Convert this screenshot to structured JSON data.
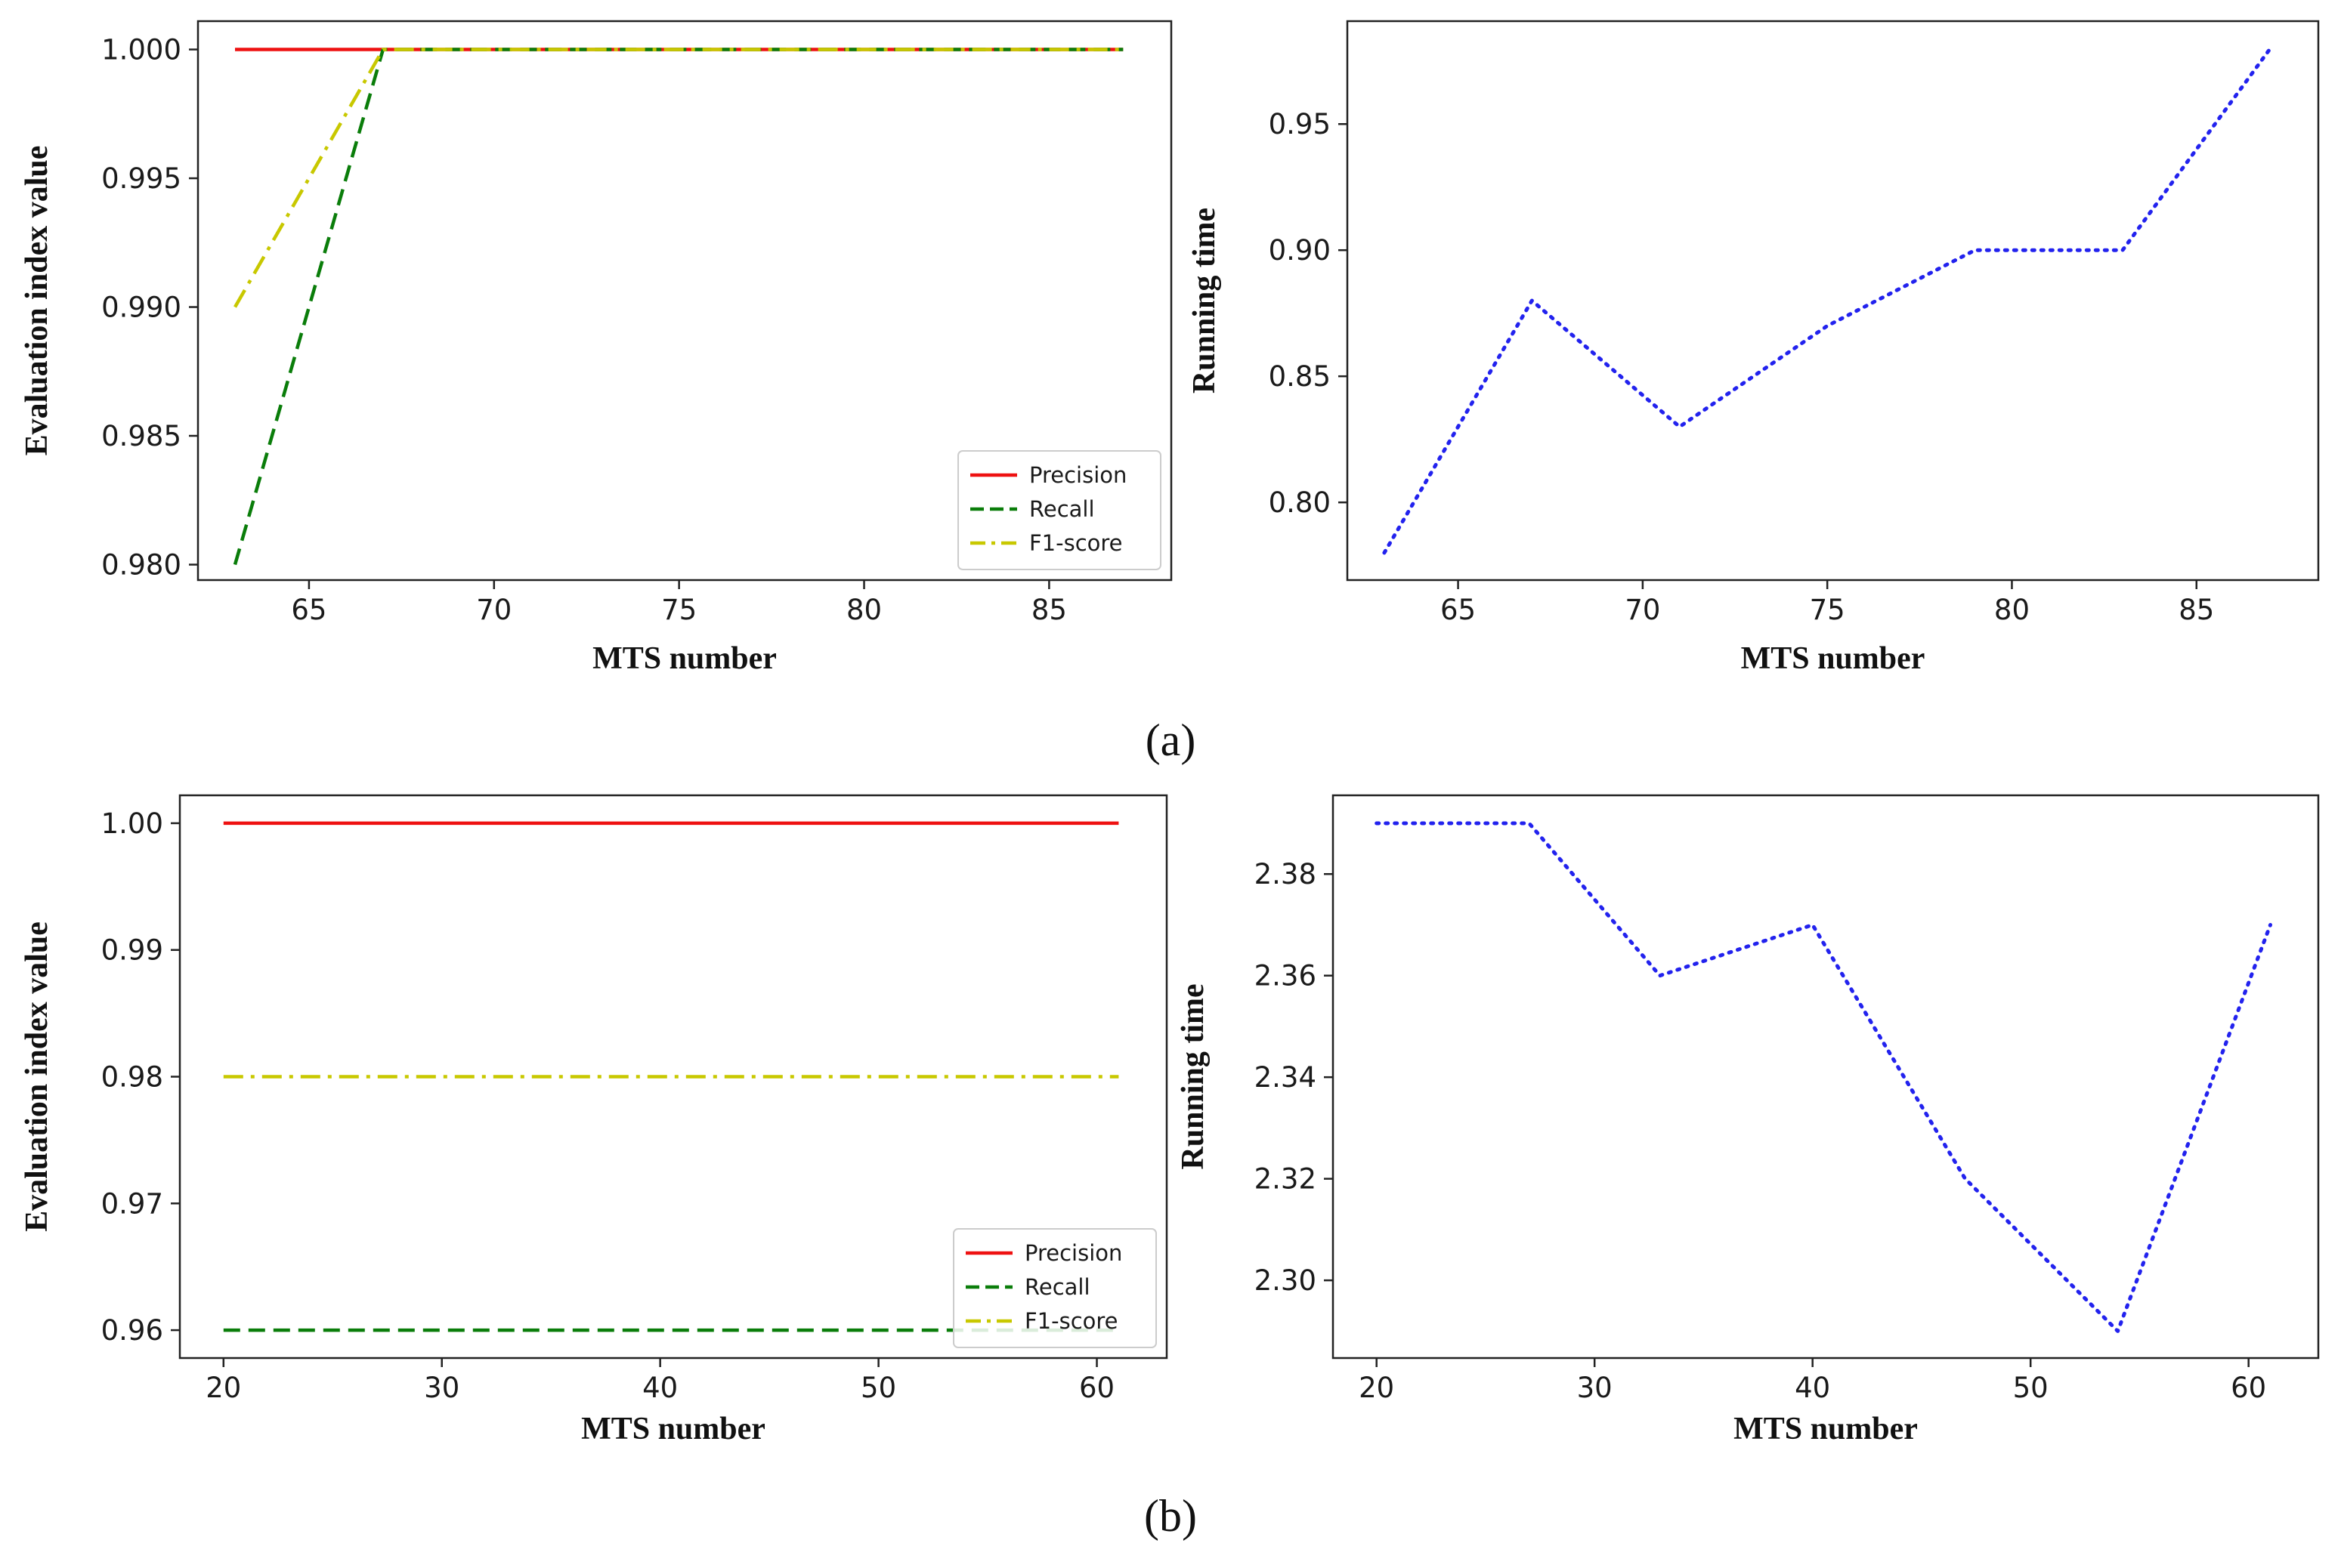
{
  "chart_data": [
    {
      "id": "a_left",
      "type": "line",
      "xlabel": "MTS number",
      "ylabel": "Evaluation index value",
      "xlim": [
        62,
        88.3
      ],
      "ylim": [
        0.9794,
        1.0011
      ],
      "xticks": [
        65,
        70,
        75,
        80,
        85
      ],
      "yticks": [
        0.98,
        0.985,
        0.99,
        0.995,
        1.0
      ],
      "ytick_decimals": 3,
      "legend": "bottom-right",
      "series": [
        {
          "name": "Precision",
          "color": "#ee1111",
          "style": "solid",
          "x": [
            63,
            67,
            71,
            75,
            79,
            83,
            87
          ],
          "values": [
            1.0,
            1.0,
            1.0,
            1.0,
            1.0,
            1.0,
            1.0
          ]
        },
        {
          "name": "Recall",
          "color": "#0a7d0a",
          "style": "dashed",
          "x": [
            63,
            67,
            71,
            75,
            79,
            83,
            87
          ],
          "values": [
            0.98,
            1.0,
            1.0,
            1.0,
            1.0,
            1.0,
            1.0
          ]
        },
        {
          "name": "F1-score",
          "color": "#c8c800",
          "style": "dashdot",
          "x": [
            63,
            67,
            71,
            75,
            79,
            83,
            87
          ],
          "values": [
            0.99,
            1.0,
            1.0,
            1.0,
            1.0,
            1.0,
            1.0
          ]
        }
      ]
    },
    {
      "id": "a_right",
      "type": "line",
      "xlabel": "MTS number",
      "ylabel": "Running time",
      "xlim": [
        62,
        88.3
      ],
      "ylim": [
        0.7692,
        0.9908
      ],
      "xticks": [
        65,
        70,
        75,
        80,
        85
      ],
      "yticks": [
        0.8,
        0.85,
        0.9,
        0.95
      ],
      "ytick_decimals": 2,
      "legend": "none",
      "series": [
        {
          "name": "Running time",
          "color": "#2222ee",
          "style": "dotted",
          "x": [
            63,
            67,
            71,
            75,
            79,
            83,
            87
          ],
          "values": [
            0.78,
            0.88,
            0.83,
            0.87,
            0.9,
            0.9,
            0.98
          ]
        }
      ]
    },
    {
      "id": "b_left",
      "type": "line",
      "xlabel": "MTS number",
      "ylabel": "Evaluation index value",
      "xlim": [
        18,
        63.2
      ],
      "ylim": [
        0.9578,
        1.0022
      ],
      "xticks": [
        20,
        30,
        40,
        50,
        60
      ],
      "yticks": [
        0.96,
        0.97,
        0.98,
        0.99,
        1.0
      ],
      "ytick_decimals": 2,
      "legend": "bottom-right",
      "series": [
        {
          "name": "Precision",
          "color": "#ee1111",
          "style": "solid",
          "x": [
            20,
            27,
            33,
            40,
            47,
            54,
            61
          ],
          "values": [
            1.0,
            1.0,
            1.0,
            1.0,
            1.0,
            1.0,
            1.0
          ]
        },
        {
          "name": "Recall",
          "color": "#0a7d0a",
          "style": "dashed",
          "x": [
            20,
            27,
            33,
            40,
            47,
            54,
            61
          ],
          "values": [
            0.96,
            0.96,
            0.96,
            0.96,
            0.96,
            0.96,
            0.96
          ]
        },
        {
          "name": "F1-score",
          "color": "#c8c800",
          "style": "dashdot",
          "x": [
            20,
            27,
            33,
            40,
            47,
            54,
            61
          ],
          "values": [
            0.98,
            0.98,
            0.98,
            0.98,
            0.98,
            0.98,
            0.98
          ]
        }
      ]
    },
    {
      "id": "b_right",
      "type": "line",
      "xlabel": "MTS number",
      "ylabel": "Running time",
      "xlim": [
        18,
        63.2
      ],
      "ylim": [
        2.2847,
        2.3955
      ],
      "xticks": [
        20,
        30,
        40,
        50,
        60
      ],
      "yticks": [
        2.3,
        2.32,
        2.34,
        2.36,
        2.38
      ],
      "ytick_decimals": 2,
      "legend": "none",
      "series": [
        {
          "name": "Running time",
          "color": "#2222ee",
          "style": "dotted",
          "x": [
            20,
            27,
            33,
            40,
            47,
            54,
            61
          ],
          "values": [
            2.39,
            2.39,
            2.36,
            2.37,
            2.32,
            2.29,
            2.37
          ]
        }
      ]
    }
  ],
  "captions": {
    "a": "(a)",
    "b": "(b)"
  }
}
